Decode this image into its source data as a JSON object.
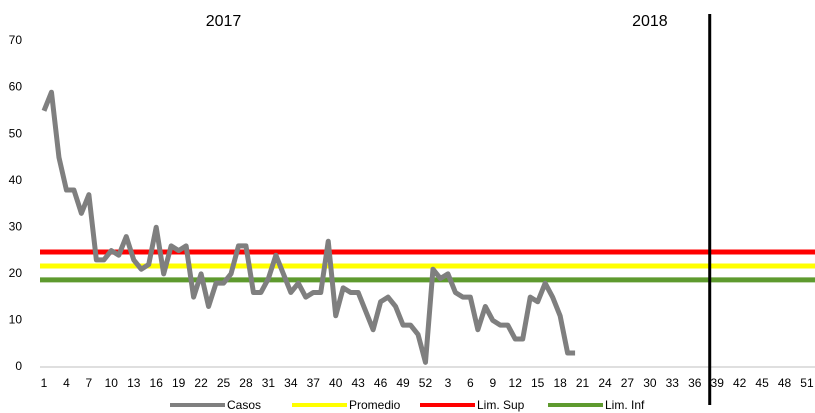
{
  "chart_data": {
    "type": "line",
    "annotations": [
      {
        "text": "2017",
        "category_index": 24
      },
      {
        "text": "2018",
        "category_index": 81
      }
    ],
    "vertical_line": {
      "category_index": 89,
      "color": "#000000"
    },
    "categories": [
      "1",
      null,
      null,
      "4",
      null,
      null,
      "7",
      null,
      null,
      "10",
      null,
      null,
      "13",
      null,
      null,
      "16",
      null,
      null,
      "19",
      null,
      null,
      "22",
      null,
      null,
      "25",
      null,
      null,
      "28",
      null,
      null,
      "31",
      null,
      null,
      "34",
      null,
      null,
      "37",
      null,
      null,
      "40",
      null,
      null,
      "43",
      null,
      null,
      "46",
      null,
      null,
      "49",
      null,
      null,
      "52",
      null,
      null,
      "3",
      null,
      null,
      "6",
      null,
      null,
      "9",
      null,
      null,
      "12",
      null,
      null,
      "15",
      null,
      null,
      "18",
      null,
      null,
      "21",
      null,
      null,
      "24",
      null,
      null,
      "27",
      null,
      null,
      "30",
      null,
      null,
      "33",
      null,
      null,
      "36",
      null,
      null,
      "39",
      null,
      null,
      "42",
      null,
      null,
      "45",
      null,
      null,
      "48",
      null,
      null,
      "51",
      null
    ],
    "series": [
      {
        "name": "Casos",
        "color": "#7f7f7f",
        "values": [
          55,
          59,
          45,
          38,
          38,
          33,
          37,
          23,
          23,
          25,
          24,
          28,
          23,
          21,
          22,
          30,
          20,
          26,
          25,
          26,
          15,
          20,
          13,
          18,
          18,
          20,
          26,
          26,
          16,
          16,
          19,
          24,
          20,
          16,
          18,
          15,
          16,
          16,
          27,
          11,
          17,
          16,
          16,
          12,
          8,
          14,
          15,
          13,
          9,
          9,
          7,
          1,
          21,
          19,
          20,
          16,
          15,
          15,
          8,
          13,
          10,
          9,
          9,
          6,
          6,
          15,
          14,
          18,
          15,
          11,
          3,
          3,
          null,
          null,
          null,
          null,
          null,
          null,
          null,
          null,
          null,
          null,
          null,
          null,
          null,
          null,
          null,
          null,
          null,
          null,
          null,
          null,
          null,
          null,
          null,
          null,
          null,
          null,
          null,
          null,
          null,
          null,
          null,
          null
        ]
      },
      {
        "name": "Promedio",
        "color": "#ffff00",
        "values": [
          21.7,
          21.7,
          21.7,
          21.7,
          21.7,
          21.7,
          21.7,
          21.7,
          21.7,
          21.7,
          21.7,
          21.7,
          21.7,
          21.7,
          21.7,
          21.7,
          21.7,
          21.7,
          21.7,
          21.7,
          21.7,
          21.7,
          21.7,
          21.7,
          21.7,
          21.7,
          21.7,
          21.7,
          21.7,
          21.7,
          21.7,
          21.7,
          21.7,
          21.7,
          21.7,
          21.7,
          21.7,
          21.7,
          21.7,
          21.7,
          21.7,
          21.7,
          21.7,
          21.7,
          21.7,
          21.7,
          21.7,
          21.7,
          21.7,
          21.7,
          21.7,
          21.7,
          21.7,
          21.7,
          21.7,
          21.7,
          21.7,
          21.7,
          21.7,
          21.7,
          21.7,
          21.7,
          21.7,
          21.7,
          21.7,
          21.7,
          21.7,
          21.7,
          21.7,
          21.7,
          21.7,
          21.7,
          21.7,
          21.7,
          21.7,
          21.7,
          21.7,
          21.7,
          21.7,
          21.7,
          21.7,
          21.7,
          21.7,
          21.7,
          21.7,
          21.7,
          21.7,
          21.7,
          21.7,
          21.7,
          21.7,
          21.7,
          21.7,
          21.7,
          21.7,
          21.7,
          21.7,
          21.7,
          21.7,
          21.7,
          21.7,
          21.7,
          21.7,
          21.7
        ]
      },
      {
        "name": "Lim. Sup",
        "color": "#ff0000",
        "values": [
          24.7,
          24.7,
          24.7,
          24.7,
          24.7,
          24.7,
          24.7,
          24.7,
          24.7,
          24.7,
          24.7,
          24.7,
          24.7,
          24.7,
          24.7,
          24.7,
          24.7,
          24.7,
          24.7,
          24.7,
          24.7,
          24.7,
          24.7,
          24.7,
          24.7,
          24.7,
          24.7,
          24.7,
          24.7,
          24.7,
          24.7,
          24.7,
          24.7,
          24.7,
          24.7,
          24.7,
          24.7,
          24.7,
          24.7,
          24.7,
          24.7,
          24.7,
          24.7,
          24.7,
          24.7,
          24.7,
          24.7,
          24.7,
          24.7,
          24.7,
          24.7,
          24.7,
          24.7,
          24.7,
          24.7,
          24.7,
          24.7,
          24.7,
          24.7,
          24.7,
          24.7,
          24.7,
          24.7,
          24.7,
          24.7,
          24.7,
          24.7,
          24.7,
          24.7,
          24.7,
          24.7,
          24.7,
          24.7,
          24.7,
          24.7,
          24.7,
          24.7,
          24.7,
          24.7,
          24.7,
          24.7,
          24.7,
          24.7,
          24.7,
          24.7,
          24.7,
          24.7,
          24.7,
          24.7,
          24.7,
          24.7,
          24.7,
          24.7,
          24.7,
          24.7,
          24.7,
          24.7,
          24.7,
          24.7,
          24.7,
          24.7,
          24.7,
          24.7,
          24.7
        ]
      },
      {
        "name": "Lim. Inf",
        "color": "#5e9a2e",
        "values": [
          18.7,
          18.7,
          18.7,
          18.7,
          18.7,
          18.7,
          18.7,
          18.7,
          18.7,
          18.7,
          18.7,
          18.7,
          18.7,
          18.7,
          18.7,
          18.7,
          18.7,
          18.7,
          18.7,
          18.7,
          18.7,
          18.7,
          18.7,
          18.7,
          18.7,
          18.7,
          18.7,
          18.7,
          18.7,
          18.7,
          18.7,
          18.7,
          18.7,
          18.7,
          18.7,
          18.7,
          18.7,
          18.7,
          18.7,
          18.7,
          18.7,
          18.7,
          18.7,
          18.7,
          18.7,
          18.7,
          18.7,
          18.7,
          18.7,
          18.7,
          18.7,
          18.7,
          18.7,
          18.7,
          18.7,
          18.7,
          18.7,
          18.7,
          18.7,
          18.7,
          18.7,
          18.7,
          18.7,
          18.7,
          18.7,
          18.7,
          18.7,
          18.7,
          18.7,
          18.7,
          18.7,
          18.7,
          18.7,
          18.7,
          18.7,
          18.7,
          18.7,
          18.7,
          18.7,
          18.7,
          18.7,
          18.7,
          18.7,
          18.7,
          18.7,
          18.7,
          18.7,
          18.7,
          18.7,
          18.7,
          18.7,
          18.7,
          18.7,
          18.7,
          18.7,
          18.7,
          18.7,
          18.7,
          18.7,
          18.7,
          18.7,
          18.7,
          18.7,
          18.7
        ]
      }
    ],
    "ylim": [
      0,
      70
    ],
    "yticks": [
      0,
      10,
      20,
      30,
      40,
      50,
      60,
      70
    ],
    "grid": false,
    "legend": "bottom"
  }
}
